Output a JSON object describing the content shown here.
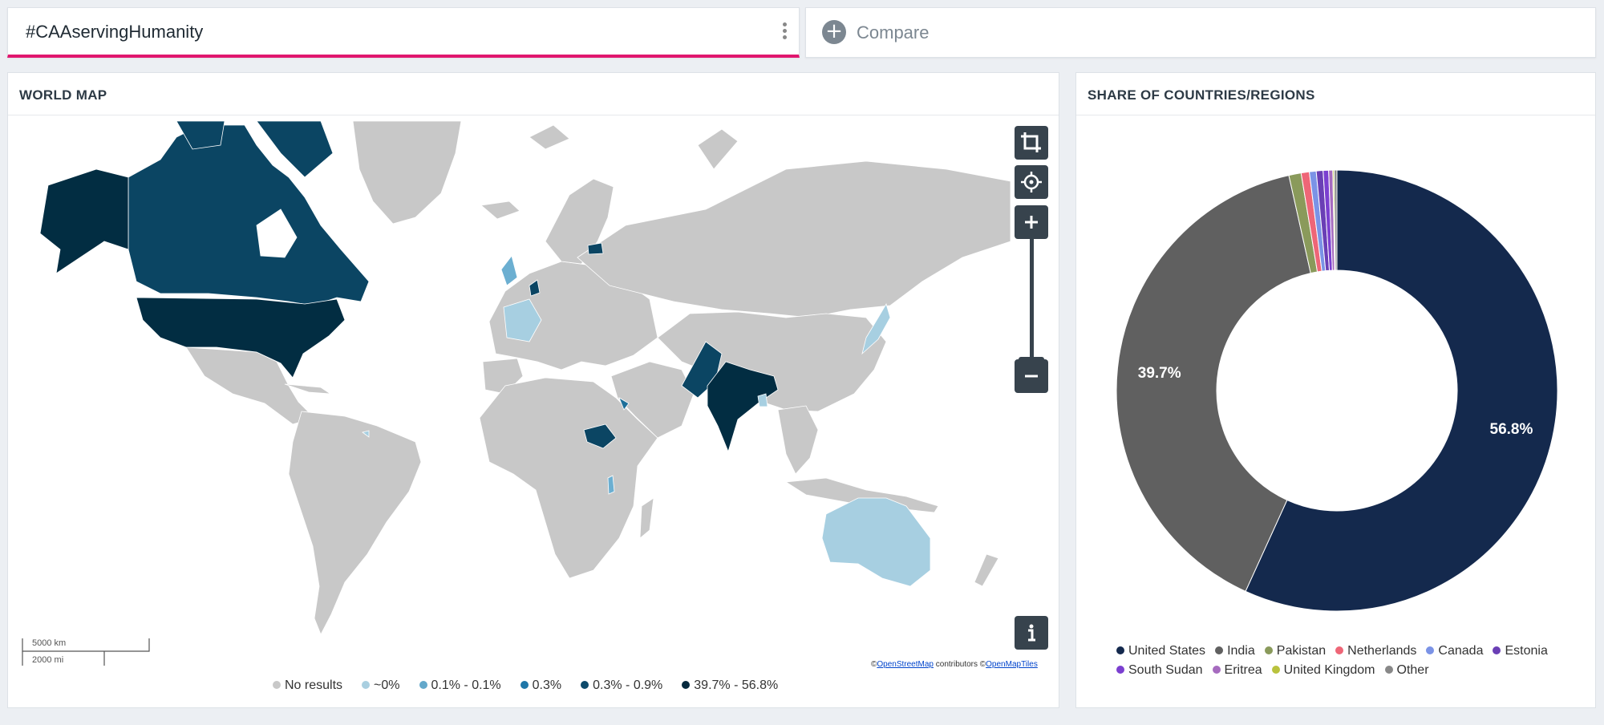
{
  "query": {
    "text": "#CAAservingHumanity"
  },
  "compare": {
    "label": "Compare"
  },
  "map_panel": {
    "title": "WORLD MAP",
    "scale": {
      "km": "5000 km",
      "mi": "2000 mi"
    },
    "attribution": {
      "prefix": "©",
      "osm": "OpenStreetMap",
      "contributors": " contributors  ©",
      "omt": "OpenMapTiles"
    },
    "legend": [
      {
        "label": "No results",
        "color": "#c8c8c8"
      },
      {
        "label": "~0%",
        "color": "#a9cfe0"
      },
      {
        "label": "0.1% - 0.1%",
        "color": "#63a8cb"
      },
      {
        "label": "0.3%",
        "color": "#1f77a8"
      },
      {
        "label": "0.3% - 0.9%",
        "color": "#0d4a6b"
      },
      {
        "label": "39.7% - 56.8%",
        "color": "#062a3e"
      }
    ],
    "controls": [
      "crop-icon",
      "locate-icon",
      "zoom-in-icon",
      "zoom-out-icon",
      "info-icon"
    ],
    "colors": {
      "land": "#c8c8c8",
      "top": "#022d42",
      "mid": "#0b4563",
      "mid2": "#1e6f99",
      "low": "#6cafd1",
      "lowest": "#a7cfe1"
    }
  },
  "share_panel": {
    "title": "SHARE OF COUNTRIES/REGIONS",
    "chart_data": {
      "type": "pie",
      "donut": true,
      "slices": [
        {
          "name": "United States",
          "value": 56.8,
          "color": "#14294d",
          "label": "56.8%"
        },
        {
          "name": "India",
          "value": 39.7,
          "color": "#606060",
          "label": "39.7%"
        },
        {
          "name": "Pakistan",
          "value": 0.9,
          "color": "#8a9a5b",
          "label": ""
        },
        {
          "name": "Netherlands",
          "value": 0.6,
          "color": "#ee6677",
          "label": ""
        },
        {
          "name": "Canada",
          "value": 0.5,
          "color": "#7b93e6",
          "label": ""
        },
        {
          "name": "Estonia",
          "value": 0.5,
          "color": "#6a3fb5",
          "label": ""
        },
        {
          "name": "South Sudan",
          "value": 0.4,
          "color": "#7b3fd0",
          "label": ""
        },
        {
          "name": "Eritrea",
          "value": 0.3,
          "color": "#a66bbf",
          "label": ""
        },
        {
          "name": "United Kingdom",
          "value": 0.1,
          "color": "#b9c23d",
          "label": ""
        },
        {
          "name": "Other",
          "value": 0.2,
          "color": "#888888",
          "label": ""
        }
      ]
    }
  }
}
